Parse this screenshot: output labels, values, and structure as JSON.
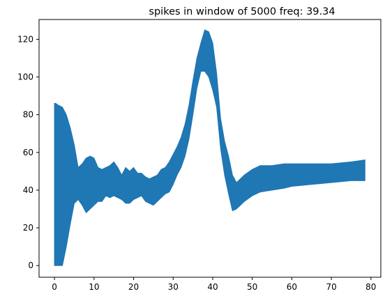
{
  "chart_data": {
    "type": "area",
    "title": "spikes in window of 5000 freq: 39.34",
    "xlabel": "",
    "ylabel": "",
    "xlim": [
      -3.9,
      82.5
    ],
    "ylim": [
      -6.2,
      130.5
    ],
    "xticks": [
      0,
      10,
      20,
      30,
      40,
      50,
      60,
      70,
      80
    ],
    "yticks": [
      0,
      20,
      40,
      60,
      80,
      100,
      120
    ],
    "grid": false,
    "legend": "none",
    "series": [
      {
        "name": "spikes",
        "color": "#1f77b4",
        "x": [
          0,
          0.3,
          1,
          2,
          3,
          4,
          5,
          6,
          7,
          8,
          9,
          10,
          11,
          12,
          13,
          14,
          15,
          16,
          17,
          18,
          19,
          20,
          21,
          22,
          23,
          24,
          25,
          26,
          27,
          28,
          29,
          30,
          31,
          32,
          33,
          34,
          35,
          36,
          37,
          38,
          39,
          40,
          41,
          42,
          43,
          44,
          45,
          46,
          47,
          48,
          50,
          52,
          55,
          58,
          60,
          65,
          70,
          75,
          78.5
        ],
        "upper": [
          86,
          86,
          85,
          84,
          80,
          73,
          64,
          52,
          54,
          57,
          58,
          57,
          52,
          51,
          52,
          53,
          55,
          52,
          48,
          52,
          50,
          52,
          49,
          49,
          47,
          46,
          47,
          48,
          51,
          52,
          55,
          59,
          63,
          68,
          75,
          85,
          98,
          110,
          118,
          125,
          124,
          118,
          102,
          78,
          66,
          58,
          48,
          44,
          46,
          48,
          51,
          53,
          53,
          54,
          54,
          54,
          54,
          55,
          56
        ],
        "lower": [
          0,
          0,
          0,
          0,
          10,
          22,
          33,
          35,
          32,
          28,
          30,
          32,
          34,
          34,
          37,
          36,
          37,
          36,
          35,
          33,
          33,
          35,
          36,
          37,
          34,
          33,
          32,
          34,
          36,
          38,
          39,
          43,
          48,
          52,
          58,
          67,
          80,
          94,
          103,
          103,
          100,
          93,
          84,
          62,
          48,
          38,
          29,
          30,
          32,
          34,
          37,
          39,
          40,
          41,
          42,
          43,
          44,
          45,
          45
        ]
      }
    ]
  }
}
